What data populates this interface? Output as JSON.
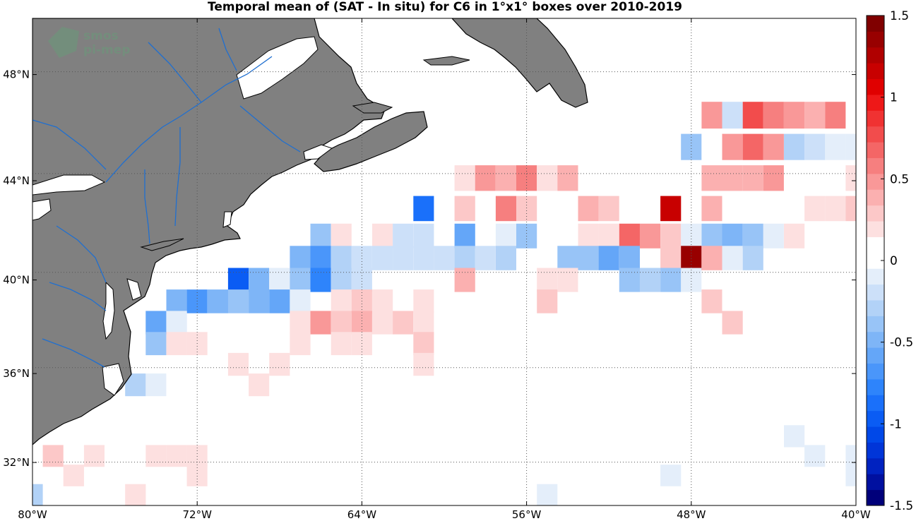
{
  "title": "Temporal mean of (SAT - In situ) for C6 in 1°x1° boxes over 2010-2019",
  "watermark": {
    "line1": "smos",
    "line2": "pi-mep"
  },
  "map": {
    "lon_range": [
      -80,
      -40
    ],
    "lat_range": [
      30,
      50
    ],
    "lon_ticks": [
      {
        "value": -80,
        "label": "80°W"
      },
      {
        "value": -72,
        "label": "72°W"
      },
      {
        "value": -64,
        "label": "64°W"
      },
      {
        "value": -56,
        "label": "56°W"
      },
      {
        "value": -48,
        "label": "48°W"
      },
      {
        "value": -40,
        "label": "40°W"
      }
    ],
    "lat_ticks": [
      {
        "value": 32,
        "label": "32°N"
      },
      {
        "value": 36,
        "label": "36°N"
      },
      {
        "value": 40,
        "label": "40°N"
      },
      {
        "value": 44,
        "label": "44°N"
      },
      {
        "value": 48,
        "label": "48°N"
      }
    ],
    "grid": "dotted",
    "land_color": "#808080",
    "river_color": "#1f6fd0",
    "coast_color": "#000000"
  },
  "colorbar": {
    "range": [
      -1.5,
      1.5
    ],
    "ticks": [
      {
        "value": 1.5,
        "label": "1.5"
      },
      {
        "value": 1,
        "label": "1"
      },
      {
        "value": 0.5,
        "label": "0.5"
      },
      {
        "value": 0,
        "label": "0"
      },
      {
        "value": -0.5,
        "label": "-0.5"
      },
      {
        "value": -1,
        "label": "-1"
      },
      {
        "value": -1.5,
        "label": "-1.5"
      }
    ],
    "colors": [
      "#00007a",
      "#0010a0",
      "#0022c0",
      "#0035d8",
      "#0048e8",
      "#0a5cf4",
      "#1a70fa",
      "#2e84fb",
      "#4a96fa",
      "#64a6f8",
      "#7eb5f7",
      "#98c4f7",
      "#b2d2f7",
      "#cce0f9",
      "#e4eefa",
      "#ffffff",
      "#ffffff",
      "#fde0e0",
      "#fcc8c8",
      "#fbb0b0",
      "#f99898",
      "#f67f7f",
      "#f46666",
      "#f24c4c",
      "#f03232",
      "#ee1818",
      "#e00000",
      "#c80000",
      "#b00000",
      "#980000",
      "#800000"
    ]
  },
  "chart_data": {
    "type": "heatmap",
    "title": "Temporal mean of (SAT - In situ) for C6 in 1°x1° boxes over 2010-2019",
    "xlabel": "",
    "ylabel": "",
    "xlim": [
      -80,
      -40
    ],
    "ylim": [
      30,
      50
    ],
    "cell_size_deg": 1,
    "value_range": [
      -1.5,
      1.5
    ],
    "cells": [
      {
        "lon": -47,
        "lat": 46.5,
        "v": 0.5
      },
      {
        "lon": -46,
        "lat": 46.5,
        "v": -0.2
      },
      {
        "lon": -45,
        "lat": 46.5,
        "v": 0.8
      },
      {
        "lon": -44,
        "lat": 46.5,
        "v": 0.6
      },
      {
        "lon": -43,
        "lat": 46.5,
        "v": 0.5
      },
      {
        "lon": -42,
        "lat": 46.5,
        "v": 0.4
      },
      {
        "lon": -41,
        "lat": 46.5,
        "v": 0.6
      },
      {
        "lon": -48,
        "lat": 45.3,
        "v": -0.4
      },
      {
        "lon": -46,
        "lat": 45.3,
        "v": 0.5
      },
      {
        "lon": -45,
        "lat": 45.3,
        "v": 0.7
      },
      {
        "lon": -44,
        "lat": 45.3,
        "v": 0.5
      },
      {
        "lon": -43,
        "lat": 45.3,
        "v": -0.3
      },
      {
        "lon": -42,
        "lat": 45.3,
        "v": -0.2
      },
      {
        "lon": -41,
        "lat": 45.3,
        "v": -0.1
      },
      {
        "lon": -40,
        "lat": 45.3,
        "v": -0.1
      },
      {
        "lon": -59,
        "lat": 44.1,
        "v": 0.2
      },
      {
        "lon": -58,
        "lat": 44.1,
        "v": 0.5
      },
      {
        "lon": -57,
        "lat": 44.1,
        "v": 0.4
      },
      {
        "lon": -56,
        "lat": 44.1,
        "v": 0.6
      },
      {
        "lon": -55,
        "lat": 44.1,
        "v": 0.2
      },
      {
        "lon": -54,
        "lat": 44.1,
        "v": 0.4
      },
      {
        "lon": -47,
        "lat": 44.1,
        "v": 0.4
      },
      {
        "lon": -46,
        "lat": 44.1,
        "v": 0.4
      },
      {
        "lon": -45,
        "lat": 44.1,
        "v": 0.4
      },
      {
        "lon": -44,
        "lat": 44.1,
        "v": 0.5
      },
      {
        "lon": -40,
        "lat": 44.1,
        "v": 0.2
      },
      {
        "lon": -61,
        "lat": 42.9,
        "v": -0.9
      },
      {
        "lon": -59,
        "lat": 42.9,
        "v": 0.3
      },
      {
        "lon": -57,
        "lat": 42.9,
        "v": 0.6
      },
      {
        "lon": -56,
        "lat": 42.9,
        "v": 0.3
      },
      {
        "lon": -53,
        "lat": 42.9,
        "v": 0.4
      },
      {
        "lon": -52,
        "lat": 42.9,
        "v": 0.3
      },
      {
        "lon": -49,
        "lat": 42.9,
        "v": 1.2
      },
      {
        "lon": -47,
        "lat": 42.9,
        "v": 0.4
      },
      {
        "lon": -42,
        "lat": 42.9,
        "v": 0.2
      },
      {
        "lon": -41,
        "lat": 42.9,
        "v": 0.2
      },
      {
        "lon": -40,
        "lat": 42.9,
        "v": 0.3
      },
      {
        "lon": -66,
        "lat": 41.8,
        "v": -0.4
      },
      {
        "lon": -65,
        "lat": 41.8,
        "v": 0.2
      },
      {
        "lon": -63,
        "lat": 41.8,
        "v": 0.2
      },
      {
        "lon": -62,
        "lat": 41.8,
        "v": -0.2
      },
      {
        "lon": -61,
        "lat": 41.8,
        "v": -0.2
      },
      {
        "lon": -59,
        "lat": 41.8,
        "v": -0.6
      },
      {
        "lon": -57,
        "lat": 41.8,
        "v": -0.1
      },
      {
        "lon": -56,
        "lat": 41.8,
        "v": -0.4
      },
      {
        "lon": -53,
        "lat": 41.8,
        "v": 0.2
      },
      {
        "lon": -52,
        "lat": 41.8,
        "v": 0.2
      },
      {
        "lon": -51,
        "lat": 41.8,
        "v": 0.7
      },
      {
        "lon": -50,
        "lat": 41.8,
        "v": 0.5
      },
      {
        "lon": -49,
        "lat": 41.8,
        "v": 0.3
      },
      {
        "lon": -48,
        "lat": 41.8,
        "v": -0.1
      },
      {
        "lon": -47,
        "lat": 41.8,
        "v": -0.4
      },
      {
        "lon": -46,
        "lat": 41.8,
        "v": -0.5
      },
      {
        "lon": -45,
        "lat": 41.8,
        "v": -0.4
      },
      {
        "lon": -44,
        "lat": 41.8,
        "v": -0.1
      },
      {
        "lon": -43,
        "lat": 41.8,
        "v": 0.2
      },
      {
        "lon": -67,
        "lat": 40.9,
        "v": -0.5
      },
      {
        "lon": -66,
        "lat": 40.9,
        "v": -0.7
      },
      {
        "lon": -65,
        "lat": 40.9,
        "v": -0.3
      },
      {
        "lon": -64,
        "lat": 40.9,
        "v": -0.2
      },
      {
        "lon": -63,
        "lat": 40.9,
        "v": -0.2
      },
      {
        "lon": -62,
        "lat": 40.9,
        "v": -0.2
      },
      {
        "lon": -61,
        "lat": 40.9,
        "v": -0.2
      },
      {
        "lon": -60,
        "lat": 40.9,
        "v": -0.2
      },
      {
        "lon": -59,
        "lat": 40.9,
        "v": -0.3
      },
      {
        "lon": -58,
        "lat": 40.9,
        "v": -0.2
      },
      {
        "lon": -57,
        "lat": 40.9,
        "v": -0.3
      },
      {
        "lon": -54,
        "lat": 40.9,
        "v": -0.4
      },
      {
        "lon": -53,
        "lat": 40.9,
        "v": -0.4
      },
      {
        "lon": -52,
        "lat": 40.9,
        "v": -0.6
      },
      {
        "lon": -51,
        "lat": 40.9,
        "v": -0.5
      },
      {
        "lon": -49,
        "lat": 40.9,
        "v": 0.3
      },
      {
        "lon": -48,
        "lat": 40.9,
        "v": 1.4
      },
      {
        "lon": -47,
        "lat": 40.9,
        "v": 0.4
      },
      {
        "lon": -46,
        "lat": 40.9,
        "v": -0.1
      },
      {
        "lon": -45,
        "lat": 40.9,
        "v": -0.3
      },
      {
        "lon": -70,
        "lat": 40.0,
        "v": -1.0
      },
      {
        "lon": -69,
        "lat": 40.0,
        "v": -0.5
      },
      {
        "lon": -68,
        "lat": 40.0,
        "v": -0.1
      },
      {
        "lon": -67,
        "lat": 40.0,
        "v": -0.4
      },
      {
        "lon": -66,
        "lat": 40.0,
        "v": -0.8
      },
      {
        "lon": -65,
        "lat": 40.0,
        "v": -0.3
      },
      {
        "lon": -64,
        "lat": 40.0,
        "v": -0.2
      },
      {
        "lon": -59,
        "lat": 40.0,
        "v": 0.4
      },
      {
        "lon": -55,
        "lat": 40.0,
        "v": 0.2
      },
      {
        "lon": -54,
        "lat": 40.0,
        "v": 0.2
      },
      {
        "lon": -51,
        "lat": 40.0,
        "v": -0.4
      },
      {
        "lon": -50,
        "lat": 40.0,
        "v": -0.3
      },
      {
        "lon": -49,
        "lat": 40.0,
        "v": -0.4
      },
      {
        "lon": -48,
        "lat": 40.0,
        "v": -0.1
      },
      {
        "lon": -73,
        "lat": 39.1,
        "v": -0.5
      },
      {
        "lon": -72,
        "lat": 39.1,
        "v": -0.7
      },
      {
        "lon": -71,
        "lat": 39.1,
        "v": -0.5
      },
      {
        "lon": -70,
        "lat": 39.1,
        "v": -0.4
      },
      {
        "lon": -69,
        "lat": 39.1,
        "v": -0.5
      },
      {
        "lon": -68,
        "lat": 39.1,
        "v": -0.6
      },
      {
        "lon": -67,
        "lat": 39.1,
        "v": -0.1
      },
      {
        "lon": -65,
        "lat": 39.1,
        "v": 0.2
      },
      {
        "lon": -64,
        "lat": 39.1,
        "v": 0.3
      },
      {
        "lon": -63,
        "lat": 39.1,
        "v": 0.2
      },
      {
        "lon": -61,
        "lat": 39.1,
        "v": 0.2
      },
      {
        "lon": -55,
        "lat": 39.1,
        "v": 0.3
      },
      {
        "lon": -47,
        "lat": 39.1,
        "v": 0.3
      },
      {
        "lon": -74,
        "lat": 38.2,
        "v": -0.6
      },
      {
        "lon": -73,
        "lat": 38.2,
        "v": -0.1
      },
      {
        "lon": -67,
        "lat": 38.2,
        "v": 0.2
      },
      {
        "lon": -66,
        "lat": 38.2,
        "v": 0.5
      },
      {
        "lon": -65,
        "lat": 38.2,
        "v": 0.3
      },
      {
        "lon": -64,
        "lat": 38.2,
        "v": 0.4
      },
      {
        "lon": -63,
        "lat": 38.2,
        "v": 0.2
      },
      {
        "lon": -62,
        "lat": 38.2,
        "v": 0.3
      },
      {
        "lon": -61,
        "lat": 38.2,
        "v": 0.2
      },
      {
        "lon": -46,
        "lat": 38.2,
        "v": 0.3
      },
      {
        "lon": -74,
        "lat": 37.3,
        "v": -0.4
      },
      {
        "lon": -73,
        "lat": 37.3,
        "v": 0.2
      },
      {
        "lon": -72,
        "lat": 37.3,
        "v": 0.2
      },
      {
        "lon": -67,
        "lat": 37.3,
        "v": 0.2
      },
      {
        "lon": -65,
        "lat": 37.3,
        "v": 0.2
      },
      {
        "lon": -64,
        "lat": 37.3,
        "v": 0.2
      },
      {
        "lon": -61,
        "lat": 37.3,
        "v": 0.3
      },
      {
        "lon": -70,
        "lat": 36.4,
        "v": 0.2
      },
      {
        "lon": -68,
        "lat": 36.4,
        "v": 0.2
      },
      {
        "lon": -61,
        "lat": 36.4,
        "v": 0.2
      },
      {
        "lon": -75,
        "lat": 35.5,
        "v": -0.3
      },
      {
        "lon": -74,
        "lat": 35.5,
        "v": -0.1
      },
      {
        "lon": -69,
        "lat": 35.5,
        "v": 0.2
      },
      {
        "lon": -43,
        "lat": 33.2,
        "v": -0.1
      },
      {
        "lon": -79,
        "lat": 32.3,
        "v": 0.3
      },
      {
        "lon": -77,
        "lat": 32.3,
        "v": 0.2
      },
      {
        "lon": -74,
        "lat": 32.3,
        "v": 0.2
      },
      {
        "lon": -73,
        "lat": 32.3,
        "v": 0.2
      },
      {
        "lon": -72,
        "lat": 32.3,
        "v": 0.2
      },
      {
        "lon": -42,
        "lat": 32.3,
        "v": -0.1
      },
      {
        "lon": -40,
        "lat": 32.3,
        "v": -0.1
      },
      {
        "lon": -78,
        "lat": 31.4,
        "v": 0.2
      },
      {
        "lon": -72,
        "lat": 31.4,
        "v": 0.2
      },
      {
        "lon": -49,
        "lat": 31.4,
        "v": -0.1
      },
      {
        "lon": -40,
        "lat": 31.4,
        "v": -0.1
      },
      {
        "lon": -80,
        "lat": 30.5,
        "v": -0.3
      },
      {
        "lon": -75,
        "lat": 30.5,
        "v": 0.2
      },
      {
        "lon": -55,
        "lat": 30.5,
        "v": -0.1
      }
    ]
  }
}
